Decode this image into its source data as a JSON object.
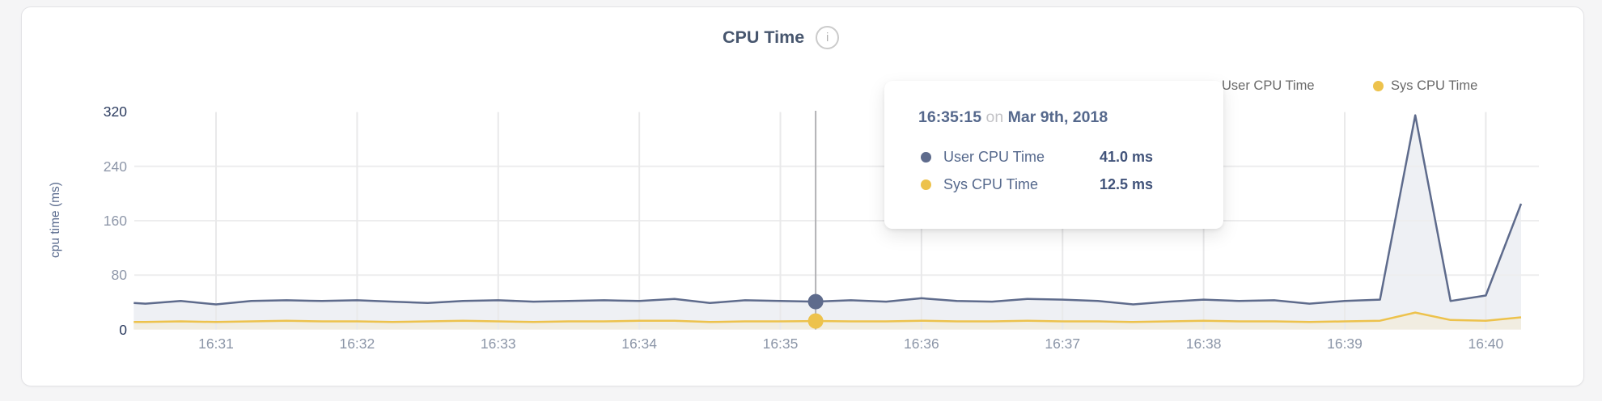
{
  "card": {
    "title": "CPU Time",
    "info_icon_glyph": "i"
  },
  "legend": {
    "items": [
      {
        "label": "User CPU Time",
        "color": "#5e6b8c"
      },
      {
        "label": "Sys CPU Time",
        "color": "#edc24c"
      }
    ]
  },
  "tooltip": {
    "time": "16:35:15",
    "separator": "on",
    "date": "Mar 9th, 2018",
    "rows": [
      {
        "label": "User CPU Time",
        "value": "41.0 ms",
        "color": "#5e6b8c"
      },
      {
        "label": "Sys CPU Time",
        "value": "12.5 ms",
        "color": "#edc24c"
      }
    ]
  },
  "chart_data": {
    "type": "area",
    "title": "CPU Time",
    "xlabel": "",
    "ylabel": "cpu time (ms)",
    "ylim": [
      0,
      320
    ],
    "grid": true,
    "legend_position": "top-right",
    "x_unit": "seconds after 16:30:00",
    "yticks": [
      {
        "v": 0,
        "label": "0",
        "strong": true
      },
      {
        "v": 80,
        "label": "80",
        "strong": false
      },
      {
        "v": 160,
        "label": "160",
        "strong": false
      },
      {
        "v": 240,
        "label": "240",
        "strong": false
      },
      {
        "v": 320,
        "label": "320",
        "strong": true
      }
    ],
    "xticks": [
      {
        "t": 60,
        "label": "16:31"
      },
      {
        "t": 120,
        "label": "16:32"
      },
      {
        "t": 180,
        "label": "16:33"
      },
      {
        "t": 240,
        "label": "16:34"
      },
      {
        "t": 300,
        "label": "16:35"
      },
      {
        "t": 360,
        "label": "16:36"
      },
      {
        "t": 420,
        "label": "16:37"
      },
      {
        "t": 480,
        "label": "16:38"
      },
      {
        "t": 540,
        "label": "16:39"
      },
      {
        "t": 600,
        "label": "16:40"
      }
    ],
    "series": [
      {
        "name": "User CPU Time",
        "color": "#5e6b8c",
        "fill": "#eef0f4",
        "points": [
          [
            25,
            39
          ],
          [
            30,
            38
          ],
          [
            45,
            42
          ],
          [
            60,
            37
          ],
          [
            75,
            42
          ],
          [
            90,
            43
          ],
          [
            105,
            42
          ],
          [
            120,
            43
          ],
          [
            135,
            41
          ],
          [
            150,
            39
          ],
          [
            165,
            42
          ],
          [
            180,
            43
          ],
          [
            195,
            41
          ],
          [
            210,
            42
          ],
          [
            225,
            43
          ],
          [
            240,
            42
          ],
          [
            255,
            45
          ],
          [
            270,
            39
          ],
          [
            285,
            43
          ],
          [
            300,
            42
          ],
          [
            315,
            41
          ],
          [
            330,
            43
          ],
          [
            345,
            41
          ],
          [
            360,
            46
          ],
          [
            375,
            42
          ],
          [
            390,
            41
          ],
          [
            405,
            45
          ],
          [
            420,
            44
          ],
          [
            435,
            42
          ],
          [
            450,
            37
          ],
          [
            465,
            41
          ],
          [
            480,
            44
          ],
          [
            495,
            42
          ],
          [
            510,
            43
          ],
          [
            525,
            38
          ],
          [
            540,
            42
          ],
          [
            555,
            44
          ],
          [
            570,
            315
          ],
          [
            585,
            42
          ],
          [
            600,
            50
          ],
          [
            615,
            185
          ]
        ]
      },
      {
        "name": "Sys CPU Time",
        "color": "#edc24c",
        "fill": "#f1ede1",
        "points": [
          [
            25,
            11
          ],
          [
            30,
            11
          ],
          [
            45,
            12
          ],
          [
            60,
            11
          ],
          [
            75,
            12
          ],
          [
            90,
            13
          ],
          [
            105,
            12
          ],
          [
            120,
            12
          ],
          [
            135,
            11
          ],
          [
            150,
            12
          ],
          [
            165,
            13
          ],
          [
            180,
            12
          ],
          [
            195,
            11
          ],
          [
            210,
            12
          ],
          [
            225,
            12
          ],
          [
            240,
            13
          ],
          [
            255,
            13
          ],
          [
            270,
            11
          ],
          [
            285,
            12
          ],
          [
            300,
            12
          ],
          [
            315,
            12.5
          ],
          [
            330,
            12
          ],
          [
            345,
            12
          ],
          [
            360,
            13
          ],
          [
            375,
            12
          ],
          [
            390,
            12
          ],
          [
            405,
            13
          ],
          [
            420,
            12
          ],
          [
            435,
            12
          ],
          [
            450,
            11
          ],
          [
            465,
            12
          ],
          [
            480,
            13
          ],
          [
            495,
            12
          ],
          [
            510,
            12
          ],
          [
            525,
            11
          ],
          [
            540,
            12
          ],
          [
            555,
            13
          ],
          [
            570,
            25
          ],
          [
            585,
            14
          ],
          [
            600,
            13
          ],
          [
            615,
            18
          ]
        ]
      }
    ],
    "hover": {
      "t": 315,
      "time_label": "16:35:15",
      "date_label": "Mar 9th, 2018",
      "values": {
        "User CPU Time": 41.0,
        "Sys CPU Time": 12.5
      }
    }
  },
  "colors": {
    "hover_line": "#b1b1b4",
    "grid_vertical": "#e9e9ea",
    "grid_horizontal": "#ededee",
    "title_text": "#47566e",
    "axis_strong_tick": "#2a3a5e",
    "axis_tick": "#8c96a8"
  }
}
